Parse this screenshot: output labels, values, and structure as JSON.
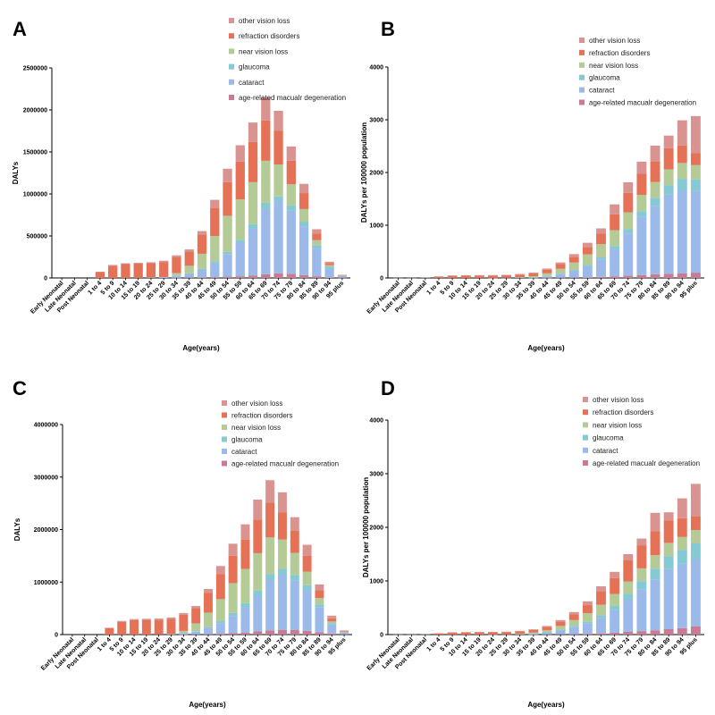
{
  "colors": {
    "age-related  macualr degeneration": "#c97b93",
    "cataract": "#9bbae9",
    "glaucoma": "#84c9d3",
    "near vision loss": "#b4cb97",
    "refraction disorders": "#e57156",
    "other vision loss": "#d99390"
  },
  "chart_data": [
    {
      "panel": "A",
      "type": "bar",
      "stacked": true,
      "xlabel": "Age(years)",
      "ylabel": "DALYs",
      "ylim": [
        0,
        2500000
      ],
      "yticks": [
        "0",
        "500000",
        "1000000",
        "1500000",
        "2000000",
        "2500000"
      ],
      "yticks_values": [
        0,
        500000,
        1000000,
        1500000,
        2000000,
        2500000
      ],
      "legend": [
        "other vision loss",
        "refraction disorders",
        "near vision loss",
        "glaucoma",
        "cataract",
        "age-related  macualr degeneration"
      ],
      "categories": [
        "Early Neonatal",
        "Late Neonatal",
        "Post Neonatal",
        "1 to 4",
        "5 to 9",
        "10 to 14",
        "15 to 19",
        "20 to 24",
        "25 to 29",
        "30 to 34",
        "35 to 39",
        "40 to 44",
        "45 to 49",
        "50 to 54",
        "55 to 59",
        "60 to 64",
        "65 to 69",
        "70 to 74",
        "75 to 79",
        "80 to 84",
        "85 to 89",
        "90 to 94",
        "95 plus"
      ],
      "series": [
        {
          "name": "age-related  macualr degeneration",
          "values": [
            0,
            0,
            0,
            0,
            0,
            0,
            0,
            0,
            0,
            1000,
            3000,
            6000,
            10000,
            15000,
            20000,
            30000,
            45000,
            55000,
            50000,
            35000,
            20000,
            8000,
            2000
          ]
        },
        {
          "name": "cataract",
          "values": [
            0,
            0,
            0,
            0,
            0,
            0,
            0,
            5000,
            10000,
            25000,
            45000,
            90000,
            170000,
            270000,
            400000,
            560000,
            780000,
            850000,
            750000,
            580000,
            330000,
            110000,
            20000
          ]
        },
        {
          "name": "glaucoma",
          "values": [
            0,
            0,
            0,
            0,
            0,
            0,
            0,
            0,
            0,
            3000,
            7000,
            12000,
            20000,
            25000,
            35000,
            50000,
            70000,
            65000,
            65000,
            55000,
            40000,
            15000,
            3000
          ]
        },
        {
          "name": "near vision loss",
          "values": [
            0,
            0,
            0,
            0,
            0,
            0,
            0,
            0,
            0,
            30000,
            90000,
            180000,
            300000,
            430000,
            480000,
            500000,
            500000,
            380000,
            250000,
            150000,
            60000,
            20000,
            3000
          ]
        },
        {
          "name": "refraction disorders",
          "values": [
            0,
            0,
            0,
            70000,
            145000,
            165000,
            170000,
            170000,
            180000,
            190000,
            170000,
            230000,
            330000,
            400000,
            450000,
            480000,
            480000,
            400000,
            280000,
            190000,
            80000,
            25000,
            5000
          ]
        },
        {
          "name": "other vision loss",
          "values": [
            0,
            0,
            0,
            5000,
            10000,
            10000,
            10000,
            12000,
            15000,
            20000,
            25000,
            40000,
            100000,
            160000,
            195000,
            230000,
            275000,
            240000,
            170000,
            110000,
            50000,
            15000,
            5000
          ]
        }
      ]
    },
    {
      "panel": "B",
      "type": "bar",
      "stacked": true,
      "xlabel": "Age(years)",
      "ylabel": "DALYs per 100000 population",
      "ylim": [
        0,
        4000
      ],
      "yticks": [
        "0",
        "1000",
        "2000",
        "3000",
        "4000"
      ],
      "yticks_values": [
        0,
        1000,
        2000,
        3000,
        4000
      ],
      "legend": [
        "other vision loss",
        "refraction disorders",
        "near vision loss",
        "glaucoma",
        "cataract",
        "age-related  macualr degeneration"
      ],
      "categories": [
        "Early Neonatal",
        "Late Neonatal",
        "Post Neonatal",
        "1 to 4",
        "5 to 9",
        "10 to 14",
        "15 to 19",
        "20 to 24",
        "25 to 29",
        "30 to 34",
        "35 to 39",
        "40 to 44",
        "45 to 49",
        "50 to 54",
        "55 to 59",
        "60 to 64",
        "65 to 69",
        "70 to 74",
        "75 to 79",
        "80 to 84",
        "85 to 89",
        "90 to 94",
        "95 plus"
      ],
      "series": [
        {
          "name": "age-related  macualr degeneration",
          "values": [
            0,
            0,
            0,
            0,
            0,
            0,
            0,
            0,
            0,
            0,
            1,
            2,
            4,
            7,
            12,
            20,
            30,
            45,
            55,
            70,
            80,
            90,
            100
          ]
        },
        {
          "name": "cataract",
          "values": [
            0,
            0,
            0,
            0,
            0,
            0,
            0,
            1,
            2,
            5,
            10,
            30,
            70,
            130,
            210,
            330,
            520,
            800,
            1100,
            1300,
            1500,
            1580,
            1550
          ]
        },
        {
          "name": "glaucoma",
          "values": [
            0,
            0,
            0,
            0,
            0,
            0,
            0,
            0,
            0,
            1,
            3,
            6,
            10,
            15,
            25,
            40,
            55,
            80,
            110,
            150,
            180,
            210,
            220
          ]
        },
        {
          "name": "near vision loss",
          "values": [
            0,
            0,
            0,
            0,
            0,
            0,
            0,
            0,
            0,
            8,
            20,
            50,
            90,
            140,
            200,
            250,
            300,
            320,
            310,
            300,
            300,
            300,
            270
          ]
        },
        {
          "name": "refraction disorders",
          "values": [
            0,
            0,
            0,
            25,
            40,
            45,
            45,
            45,
            47,
            50,
            55,
            70,
            90,
            110,
            140,
            200,
            300,
            370,
            400,
            390,
            400,
            330,
            230
          ]
        },
        {
          "name": "other vision loss",
          "values": [
            2,
            2,
            5,
            5,
            8,
            8,
            9,
            9,
            10,
            12,
            15,
            20,
            30,
            50,
            80,
            100,
            190,
            200,
            230,
            300,
            240,
            480,
            700
          ]
        }
      ]
    },
    {
      "panel": "C",
      "type": "bar",
      "stacked": true,
      "xlabel": "Age(years)",
      "ylabel": "DALYs",
      "ylim": [
        0,
        4000000
      ],
      "yticks": [
        "0",
        "1000000",
        "2000000",
        "3000000",
        "4000000"
      ],
      "yticks_values": [
        0,
        1000000,
        2000000,
        3000000,
        4000000
      ],
      "legend": [
        "other vision loss",
        "refraction disorders",
        "near vision loss",
        "glaucoma",
        "cataract",
        "age-related  macualr degeneration"
      ],
      "categories": [
        "Early Neonatal",
        "Late Neonatal",
        "Post Neonatal",
        "1 to 4",
        "5 to 9",
        "10 to 14",
        "15 to 19",
        "20 to 24",
        "25 to 29",
        "30 to 34",
        "35 to 39",
        "40 to 44",
        "45 to 49",
        "50 to 54",
        "55 to 59",
        "60 to 64",
        "65 to 69",
        "70 to 74",
        "75 to 79",
        "80 to 84",
        "85 to 89",
        "90 to 94",
        "95 plus"
      ],
      "series": [
        {
          "name": "age-related  macualr degeneration",
          "values": [
            0,
            0,
            0,
            0,
            0,
            0,
            0,
            0,
            0,
            1000,
            4000,
            8000,
            15000,
            25000,
            40000,
            60000,
            80000,
            90000,
            85000,
            70000,
            45000,
            20000,
            5000
          ]
        },
        {
          "name": "cataract",
          "values": [
            0,
            0,
            0,
            0,
            0,
            0,
            0,
            5000,
            10000,
            25000,
            50000,
            110000,
            200000,
            330000,
            480000,
            680000,
            950000,
            1050000,
            950000,
            780000,
            470000,
            180000,
            40000
          ]
        },
        {
          "name": "glaucoma",
          "values": [
            0,
            0,
            0,
            0,
            0,
            0,
            0,
            0,
            0,
            4000,
            10000,
            20000,
            40000,
            55000,
            80000,
            100000,
            120000,
            110000,
            100000,
            90000,
            60000,
            20000,
            5000
          ]
        },
        {
          "name": "near vision loss",
          "values": [
            0,
            0,
            0,
            0,
            0,
            0,
            0,
            0,
            0,
            40000,
            150000,
            280000,
            420000,
            570000,
            650000,
            710000,
            700000,
            560000,
            420000,
            260000,
            120000,
            30000,
            5000
          ]
        },
        {
          "name": "refraction disorders",
          "values": [
            0,
            0,
            0,
            120000,
            240000,
            275000,
            280000,
            280000,
            290000,
            310000,
            290000,
            380000,
            480000,
            520000,
            560000,
            640000,
            660000,
            520000,
            420000,
            300000,
            150000,
            60000,
            15000
          ]
        },
        {
          "name": "other vision loss",
          "values": [
            0,
            0,
            0,
            10000,
            20000,
            20000,
            20000,
            20000,
            25000,
            30000,
            40000,
            70000,
            150000,
            230000,
            290000,
            380000,
            430000,
            380000,
            260000,
            210000,
            110000,
            50000,
            10000
          ]
        }
      ]
    },
    {
      "panel": "D",
      "type": "bar",
      "stacked": true,
      "xlabel": "Age(years)",
      "ylabel": "DALYs per 100000 population",
      "ylim": [
        0,
        4000
      ],
      "yticks": [
        "0",
        "1000",
        "2000",
        "3000",
        "4000"
      ],
      "yticks_values": [
        0,
        1000,
        2000,
        3000,
        4000
      ],
      "legend": [
        "other vision loss",
        "refraction disorders",
        "near vision loss",
        "glaucoma",
        "cataract",
        "age-related  macualr degeneration"
      ],
      "categories": [
        "Early Neonatal",
        "Late Neonatal",
        "Post Neonatal",
        "1 to 4",
        "5 to 9",
        "10 to 14",
        "15 to 19",
        "20 to 24",
        "25 to 29",
        "30 to 34",
        "35 to 39",
        "40 to 44",
        "45 to 49",
        "50 to 54",
        "55 to 59",
        "60 to 64",
        "65 to 69",
        "70 to 74",
        "75 to 79",
        "80 to 84",
        "85 to 89",
        "90 to 94",
        "95 plus"
      ],
      "series": [
        {
          "name": "age-related  macualr degeneration",
          "values": [
            0,
            0,
            0,
            0,
            0,
            0,
            0,
            0,
            0,
            0,
            1,
            3,
            5,
            8,
            14,
            22,
            35,
            50,
            65,
            80,
            100,
            120,
            150
          ]
        },
        {
          "name": "cataract",
          "values": [
            0,
            0,
            0,
            0,
            0,
            0,
            0,
            1,
            2,
            5,
            12,
            30,
            70,
            130,
            190,
            280,
            420,
            600,
            780,
            950,
            1120,
            1200,
            1250
          ]
        },
        {
          "name": "glaucoma",
          "values": [
            0,
            0,
            0,
            0,
            0,
            0,
            0,
            0,
            0,
            1,
            4,
            8,
            15,
            22,
            35,
            55,
            80,
            110,
            150,
            200,
            240,
            260,
            300
          ]
        },
        {
          "name": "near vision loss",
          "values": [
            0,
            0,
            0,
            0,
            0,
            0,
            0,
            0,
            0,
            8,
            20,
            40,
            70,
            110,
            160,
            200,
            220,
            230,
            240,
            250,
            250,
            240,
            250
          ]
        },
        {
          "name": "refraction disorders",
          "values": [
            0,
            0,
            0,
            22,
            38,
            40,
            42,
            42,
            44,
            46,
            50,
            60,
            80,
            110,
            150,
            250,
            300,
            400,
            430,
            450,
            420,
            350,
            250
          ]
        },
        {
          "name": "other vision loss",
          "values": [
            2,
            2,
            4,
            4,
            6,
            6,
            6,
            7,
            8,
            10,
            12,
            19,
            30,
            40,
            71,
            93,
            115,
            110,
            125,
            340,
            150,
            370,
            610
          ]
        }
      ]
    }
  ]
}
